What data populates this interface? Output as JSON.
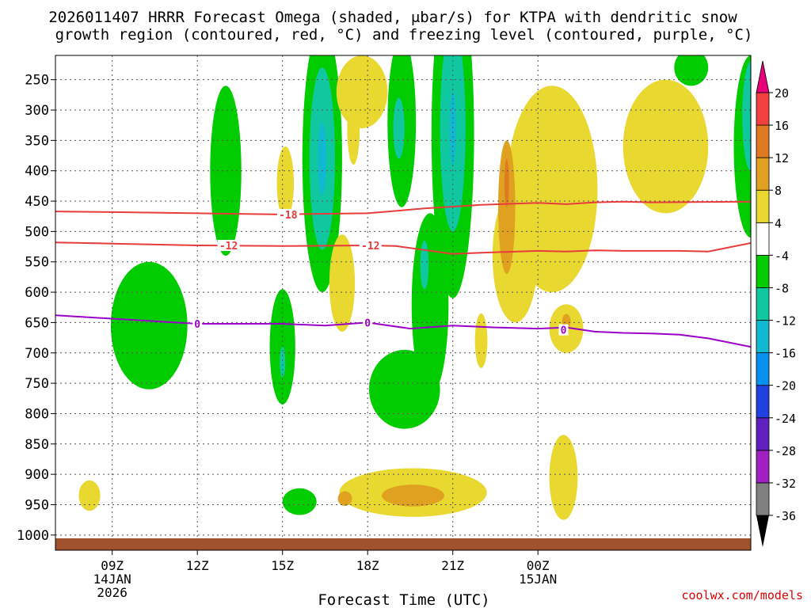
{
  "chart_data": {
    "type": "heatmap",
    "title_line1": "2026011407 HRRR Forecast Omega (shaded, μbar/s) for KTPA with dendritic snow",
    "title_line2": "growth region (contoured, red, °C) and freezing level (contoured, purple, °C)",
    "xlabel": "Forecast Time (UTC)",
    "credit": "coolwx.com/models",
    "x_hours": [
      7,
      31.5
    ],
    "y_levels": [
      210,
      1025
    ],
    "x_ticks": [
      {
        "h": 9,
        "label": "09Z",
        "sub1": "14JAN",
        "sub2": "2026"
      },
      {
        "h": 12,
        "label": "12Z",
        "sub1": "",
        "sub2": ""
      },
      {
        "h": 15,
        "label": "15Z",
        "sub1": "",
        "sub2": ""
      },
      {
        "h": 18,
        "label": "18Z",
        "sub1": "",
        "sub2": ""
      },
      {
        "h": 21,
        "label": "21Z",
        "sub1": "",
        "sub2": ""
      },
      {
        "h": 24,
        "label": "00Z",
        "sub1": "15JAN",
        "sub2": ""
      }
    ],
    "y_ticks": [
      "250",
      "300",
      "350",
      "400",
      "450",
      "500",
      "550",
      "600",
      "650",
      "700",
      "750",
      "800",
      "850",
      "900",
      "950",
      "1000"
    ],
    "colorbar": {
      "colors": [
        "#808080",
        "#a020c0",
        "#6020c0",
        "#2040e0",
        "#0890f0",
        "#10b8d0",
        "#10c8a0",
        "#00cc00",
        "#ffffff",
        "#e8d830",
        "#e0a020",
        "#e07a20",
        "#f04040",
        "#e8007a"
      ],
      "labels": [
        "-36",
        "-32",
        "-28",
        "-24",
        "-20",
        "-16",
        "-12",
        "-8",
        "-4",
        "4",
        "8",
        "12",
        "16",
        "20"
      ]
    },
    "contour_labels": {
      "minus18": "-18",
      "minus12": "-12",
      "zero": "0"
    },
    "lines": {
      "dgz_top_-18C": [
        [
          7,
          467
        ],
        [
          9,
          468
        ],
        [
          12,
          470
        ],
        [
          15,
          472
        ],
        [
          16,
          471
        ],
        [
          18,
          470
        ],
        [
          20,
          462
        ],
        [
          22,
          456
        ],
        [
          24,
          453
        ],
        [
          25,
          455
        ],
        [
          26,
          452
        ],
        [
          27,
          451
        ],
        [
          28,
          452
        ],
        [
          31.5,
          451
        ]
      ],
      "dgz_bottom_-12C": [
        [
          7,
          518
        ],
        [
          9,
          520
        ],
        [
          12,
          523
        ],
        [
          15,
          524
        ],
        [
          18,
          523
        ],
        [
          19,
          524
        ],
        [
          21,
          537
        ],
        [
          22,
          535
        ],
        [
          24,
          532
        ],
        [
          25,
          533
        ],
        [
          26,
          531
        ],
        [
          27,
          532
        ],
        [
          28,
          532
        ],
        [
          29,
          532
        ],
        [
          30,
          533
        ],
        [
          31.5,
          519
        ]
      ],
      "freezing_0C": [
        [
          7,
          638
        ],
        [
          12,
          652
        ],
        [
          15,
          652
        ],
        [
          16.5,
          655
        ],
        [
          18,
          650
        ],
        [
          19.5,
          660
        ],
        [
          21,
          655
        ],
        [
          22.5,
          658
        ],
        [
          24,
          660
        ],
        [
          25,
          658
        ],
        [
          26,
          665
        ],
        [
          27,
          667
        ],
        [
          28,
          668
        ],
        [
          29,
          670
        ],
        [
          30,
          676
        ],
        [
          31.5,
          690
        ]
      ]
    },
    "shading": [
      {
        "v": -8,
        "h": 13.0,
        "p": 400,
        "rh": 0.55,
        "rp": 140
      },
      {
        "v": -8,
        "h": 15.0,
        "p": 690,
        "rh": 0.45,
        "rp": 95
      },
      {
        "v": -12,
        "h": 15.0,
        "p": 715,
        "rh": 0.1,
        "rp": 25
      },
      {
        "v": -8,
        "h": 10.3,
        "p": 655,
        "rh": 1.35,
        "rp": 105
      },
      {
        "v": -8,
        "h": 16.4,
        "p": 380,
        "rh": 0.7,
        "rp": 220
      },
      {
        "v": -12,
        "h": 16.4,
        "p": 380,
        "rh": 0.45,
        "rp": 150
      },
      {
        "v": -16,
        "h": 16.4,
        "p": 380,
        "rh": 0.15,
        "rp": 60
      },
      {
        "v": -8,
        "h": 15.6,
        "p": 945,
        "rh": 0.6,
        "rp": 22
      },
      {
        "v": -8,
        "h": 19.2,
        "p": 320,
        "rh": 0.5,
        "rp": 140
      },
      {
        "v": -12,
        "h": 19.1,
        "p": 330,
        "rh": 0.2,
        "rp": 50
      },
      {
        "v": -8,
        "h": 21.0,
        "p": 340,
        "rh": 0.75,
        "rp": 270
      },
      {
        "v": -12,
        "h": 21.0,
        "p": 330,
        "rh": 0.45,
        "rp": 170
      },
      {
        "v": -16,
        "h": 21.0,
        "p": 330,
        "rh": 0.12,
        "rp": 60
      },
      {
        "v": -8,
        "h": 20.2,
        "p": 620,
        "rh": 0.65,
        "rp": 150
      },
      {
        "v": -8,
        "h": 19.3,
        "p": 760,
        "rh": 1.25,
        "rp": 65
      },
      {
        "v": -12,
        "h": 20.0,
        "p": 555,
        "rh": 0.15,
        "rp": 40
      },
      {
        "v": -8,
        "h": 23.9,
        "p": 500,
        "rh": 0.25,
        "rp": 40
      },
      {
        "v": -8,
        "h": 29.4,
        "p": 230,
        "rh": 0.6,
        "rp": 30
      },
      {
        "v": -8,
        "h": 31.5,
        "p": 360,
        "rh": 0.6,
        "rp": 150
      },
      {
        "v": -12,
        "h": 31.5,
        "p": 310,
        "rh": 0.3,
        "rp": 90
      },
      {
        "v": 4,
        "h": 15.1,
        "p": 420,
        "rh": 0.3,
        "rp": 60
      },
      {
        "v": 4,
        "h": 17.8,
        "p": 270,
        "rh": 0.9,
        "rp": 60
      },
      {
        "v": 4,
        "h": 17.5,
        "p": 330,
        "rh": 0.22,
        "rp": 60
      },
      {
        "v": 4,
        "h": 17.1,
        "p": 585,
        "rh": 0.45,
        "rp": 80
      },
      {
        "v": 4,
        "h": 24.5,
        "p": 430,
        "rh": 1.6,
        "rp": 170
      },
      {
        "v": 4,
        "h": 28.5,
        "p": 360,
        "rh": 1.5,
        "rp": 110
      },
      {
        "v": 4,
        "h": 23.2,
        "p": 540,
        "rh": 0.8,
        "rp": 110
      },
      {
        "v": 8,
        "h": 22.9,
        "p": 460,
        "rh": 0.3,
        "rp": 110
      },
      {
        "v": 12,
        "h": 22.9,
        "p": 420,
        "rh": 0.08,
        "rp": 40
      },
      {
        "v": 4,
        "h": 25.0,
        "p": 660,
        "rh": 0.6,
        "rp": 40
      },
      {
        "v": 8,
        "h": 25.0,
        "p": 648,
        "rh": 0.15,
        "rp": 12
      },
      {
        "v": 4,
        "h": 22.0,
        "p": 680,
        "rh": 0.22,
        "rp": 45
      },
      {
        "v": 4,
        "h": 8.2,
        "p": 935,
        "rh": 0.38,
        "rp": 25
      },
      {
        "v": 4,
        "h": 19.6,
        "p": 930,
        "rh": 2.6,
        "rp": 40
      },
      {
        "v": 8,
        "h": 19.6,
        "p": 935,
        "rh": 1.1,
        "rp": 18
      },
      {
        "v": 8,
        "h": 17.2,
        "p": 940,
        "rh": 0.25,
        "rp": 12
      },
      {
        "v": 4,
        "h": 24.9,
        "p": 905,
        "rh": 0.5,
        "rp": 70
      }
    ]
  }
}
